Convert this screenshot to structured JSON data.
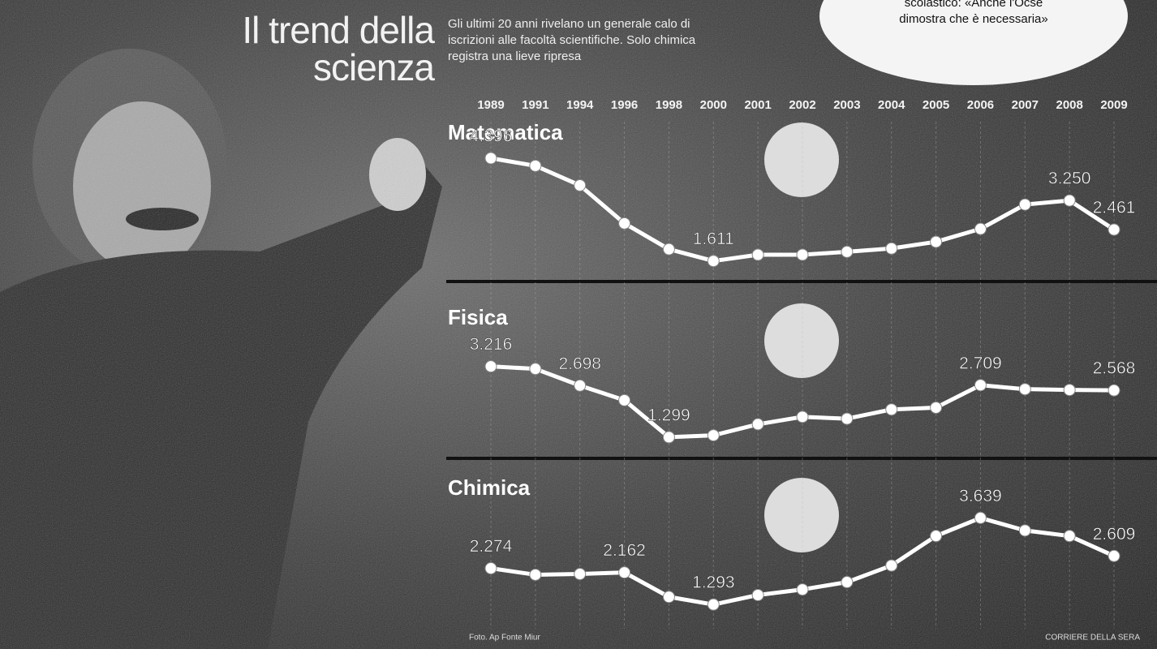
{
  "chart_data": {
    "type": "line",
    "title": "Il trend della scienza",
    "subtitle": "Gli ultimi 20 anni rivelano un generale calo di iscrizioni alle facoltà scientifiche. Solo chimica registra una lieve ripresa",
    "categories": [
      "1989",
      "1991",
      "1994",
      "1996",
      "1998",
      "2000",
      "2001",
      "2002",
      "2003",
      "2004",
      "2005",
      "2006",
      "2007",
      "2008",
      "2009"
    ],
    "ylim": [
      1000,
      4600
    ],
    "grid": true,
    "series": [
      {
        "name": "Matematica",
        "color": "#ffffff",
        "values": [
          4396,
          4190,
          3660,
          2630,
          1930,
          1611,
          1780,
          1780,
          1860,
          1950,
          2130,
          2480,
          3140,
          3250,
          2461
        ],
        "value_labels": [
          "4.396",
          null,
          null,
          null,
          null,
          "1.611",
          null,
          null,
          null,
          null,
          null,
          null,
          null,
          "3.250",
          "2.461"
        ]
      },
      {
        "name": "Fisica",
        "color": "#ffffff",
        "values": [
          3216,
          3150,
          2698,
          2300,
          1299,
          1350,
          1650,
          1850,
          1800,
          2050,
          2100,
          2709,
          2600,
          2580,
          2568
        ],
        "value_labels": [
          "3.216",
          null,
          "2.698",
          null,
          "1.299",
          null,
          null,
          null,
          null,
          null,
          null,
          "2.709",
          null,
          null,
          "2.568"
        ]
      },
      {
        "name": "Chimica",
        "color": "#ffffff",
        "values": [
          2274,
          2100,
          2120,
          2162,
          1500,
          1293,
          1550,
          1700,
          1900,
          2350,
          3150,
          3639,
          3300,
          3150,
          2609
        ],
        "value_labels": [
          "2.274",
          null,
          null,
          "2.162",
          null,
          "1.293",
          null,
          null,
          null,
          null,
          null,
          "3.639",
          null,
          null,
          "2.609"
        ]
      }
    ],
    "source": "Foto. Ap  Fonte Miur",
    "credit": "CORRIERE DELLA SERA",
    "note": [
      "scolastico: «Anche l'Ocse",
      "dimostra che è necessaria»"
    ]
  }
}
